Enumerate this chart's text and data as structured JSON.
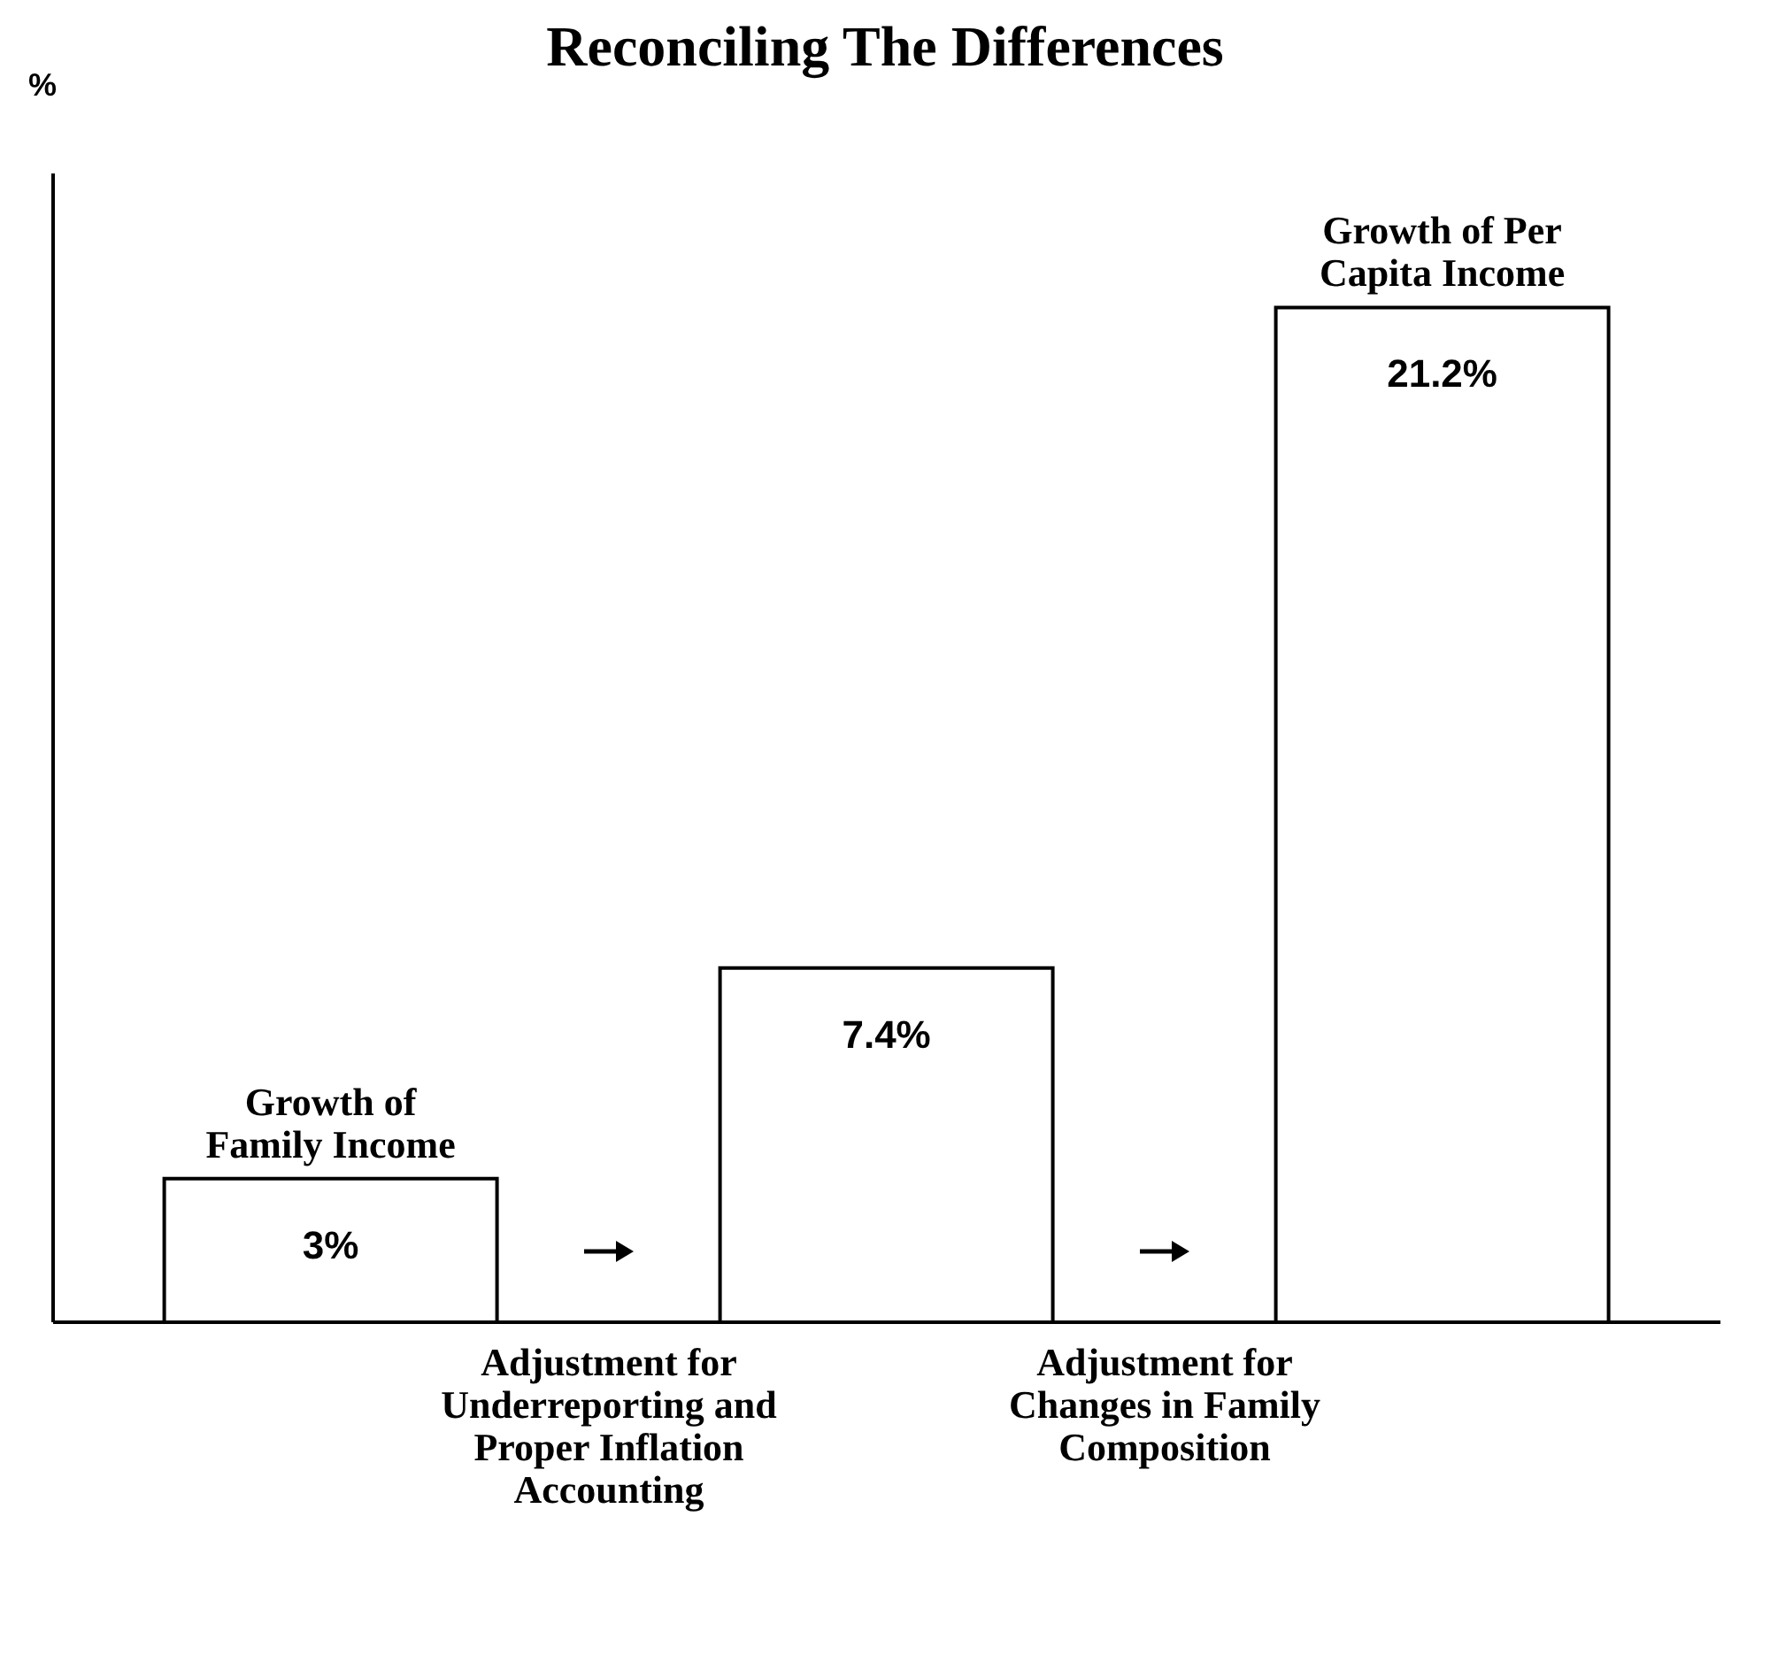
{
  "chart_data": {
    "type": "bar",
    "title": "Reconciling The Differences",
    "ylabel": "%",
    "categories": [
      "Growth of Family Income",
      null,
      "Growth of Per Capita Income"
    ],
    "values": [
      3,
      7.4,
      21.2
    ],
    "value_labels": [
      "3%",
      "7.4%",
      "21.2%"
    ],
    "color": "#ffffff",
    "ylim": [
      0,
      24
    ],
    "annotations": [
      "Adjustment for Underreporting and Proper Inflation Accounting",
      "Adjustment for Changes in Family Composition"
    ]
  }
}
